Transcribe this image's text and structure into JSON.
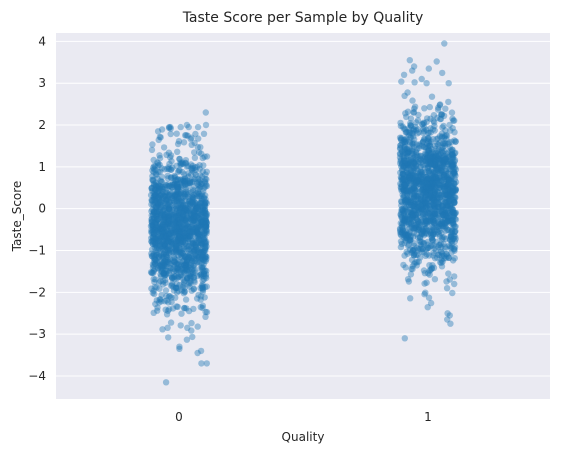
{
  "chart_data": {
    "type": "scatter",
    "subtype": "strip",
    "title": "Taste Score per Sample by Quality",
    "xlabel": "Quality",
    "ylabel": "Taste_Score",
    "categories": [
      "0",
      "1"
    ],
    "ylim": [
      -4.55,
      4.2
    ],
    "yticks": [
      -4,
      -3,
      -2,
      -1,
      0,
      1,
      2,
      3,
      4
    ],
    "ytick_labels": [
      "−4",
      "−3",
      "−2",
      "−1",
      "0",
      "1",
      "2",
      "3",
      "4"
    ],
    "grid": true,
    "background": "#eaeaf2",
    "point_color": "#1f77b4",
    "series": [
      {
        "category": "0",
        "approx_count": 1500,
        "center": -0.5,
        "spread": 0.88,
        "core_range": [
          -1.9,
          0.85
        ],
        "observed_min": -4.15,
        "observed_max": 2.3,
        "notable_points": [
          -4.15,
          -3.7,
          -3.45,
          -3.4,
          -3.35,
          -3.3,
          1.85,
          1.95,
          2.0,
          2.0,
          2.3
        ]
      },
      {
        "category": "1",
        "approx_count": 1500,
        "center": 0.45,
        "spread": 0.9,
        "core_range": [
          -0.9,
          1.8
        ],
        "observed_min": -3.1,
        "observed_max": 3.95,
        "notable_points": [
          -3.1,
          -2.75,
          -2.65,
          -2.5,
          3.0,
          3.1,
          3.2,
          3.3,
          3.35,
          3.4,
          3.55,
          3.95
        ]
      }
    ]
  }
}
